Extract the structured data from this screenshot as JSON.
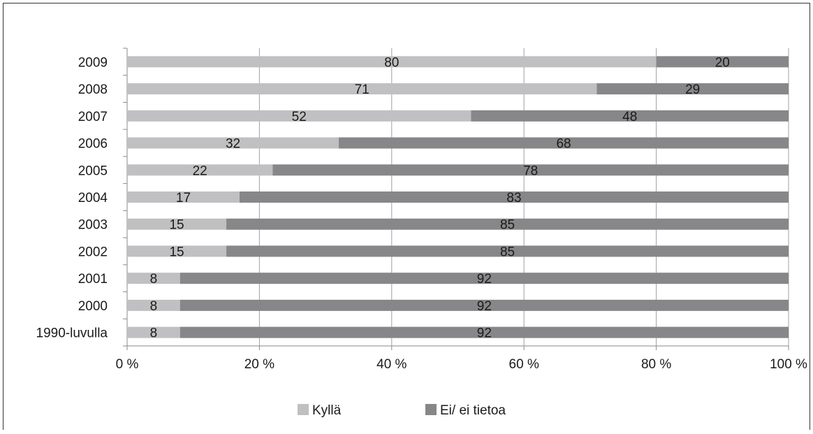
{
  "chart_data": {
    "type": "bar",
    "orientation": "horizontal",
    "stacked": "percent",
    "categories": [
      "1990-luvulla",
      "2000",
      "2001",
      "2002",
      "2003",
      "2004",
      "2005",
      "2006",
      "2007",
      "2008",
      "2009"
    ],
    "series": [
      {
        "name": "Kyllä",
        "color": "#c0c0c2",
        "values": [
          8,
          8,
          8,
          15,
          15,
          17,
          22,
          32,
          52,
          71,
          80
        ]
      },
      {
        "name": "Ei/ ei tietoa",
        "color": "#87878a",
        "values": [
          92,
          92,
          92,
          85,
          85,
          83,
          78,
          68,
          48,
          29,
          20
        ]
      }
    ],
    "xlim": [
      0,
      100
    ],
    "xticks": [
      "0 %",
      "20 %",
      "40 %",
      "60 %",
      "80 %",
      "100 %"
    ],
    "grid": true,
    "legend_position": "bottom"
  }
}
